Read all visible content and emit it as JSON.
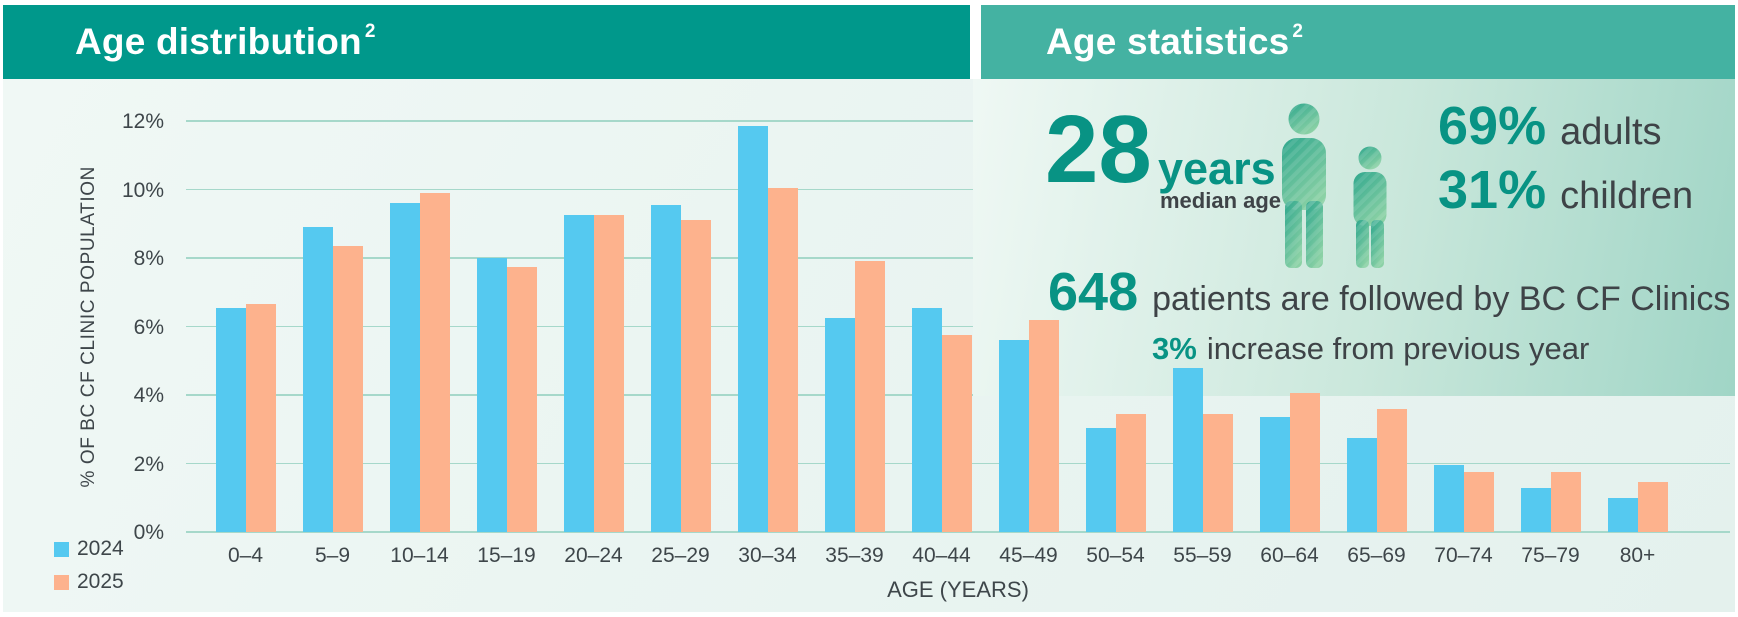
{
  "page": {
    "left_header": {
      "title": "Age distribution",
      "superscript": "2"
    },
    "right_header": {
      "title": "Age statistics",
      "superscript": "2"
    }
  },
  "stats": {
    "median_age_value": "28",
    "median_age_unit": "years",
    "median_age_label": "median age",
    "adults_pct": "69%",
    "adults_label": "adults",
    "children_pct": "31%",
    "children_label": "children",
    "patients_value": "648",
    "patients_label": "patients are followed by BC CF Clinics",
    "increase_value": "3%",
    "increase_label": "increase from previous year"
  },
  "chart_data": {
    "type": "bar",
    "title": "Age distribution",
    "xlabel": "AGE (YEARS)",
    "ylabel": "% OF BC CF CLINIC POPULATION",
    "ylim": [
      0,
      12
    ],
    "yticks": [
      0,
      2,
      4,
      6,
      8,
      10,
      12
    ],
    "ytick_suffix": "%",
    "grid": true,
    "legend_position": "bottom-left",
    "categories": [
      "0–4",
      "5–9",
      "10–14",
      "15–19",
      "20–24",
      "25–29",
      "30–34",
      "35–39",
      "40–44",
      "45–49",
      "50–54",
      "55–59",
      "60–64",
      "65–69",
      "70–74",
      "75–79",
      "80+"
    ],
    "series": [
      {
        "name": "2024",
        "color": "#55C9F0",
        "values": [
          6.55,
          8.9,
          9.6,
          8.0,
          9.25,
          9.55,
          11.85,
          6.25,
          6.55,
          5.6,
          3.05,
          4.8,
          3.35,
          2.75,
          1.95,
          1.3,
          1.0
        ]
      },
      {
        "name": "2025",
        "color": "#FDB28D",
        "values": [
          6.65,
          8.35,
          9.9,
          7.75,
          9.25,
          9.1,
          10.05,
          7.9,
          5.75,
          6.2,
          3.45,
          3.45,
          4.05,
          3.6,
          1.75,
          1.75,
          1.45
        ]
      }
    ]
  },
  "colors": {
    "header_left_bg": "#00988B",
    "header_right_bg": "#44B2A2",
    "accent_teal_text": "#089384",
    "chart_bg": "#E9F4F1",
    "gridline": "#A6D8CA",
    "dark_text": "#3E4347",
    "icon_gradient_top": "#2FA78D",
    "icon_gradient_bottom": "#8BD1A5"
  }
}
